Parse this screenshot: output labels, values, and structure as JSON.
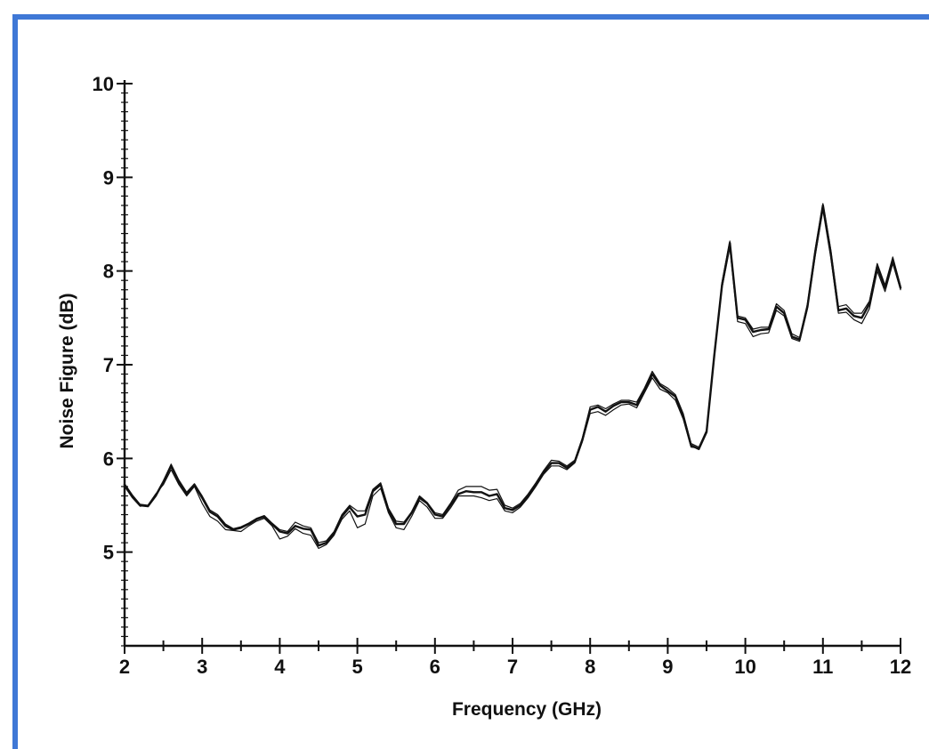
{
  "chart_data": {
    "type": "line",
    "xlabel": "Frequency (GHz)",
    "ylabel": "Noise Figure (dB)",
    "xlim": [
      2,
      12
    ],
    "ylim": [
      4,
      10
    ],
    "x_ticks": [
      2,
      3,
      4,
      5,
      6,
      7,
      8,
      9,
      10,
      11,
      12
    ],
    "y_ticks": [
      5,
      6,
      7,
      8,
      9,
      10
    ],
    "x_tick_labels": [
      "2",
      "3",
      "4",
      "5",
      "6",
      "7",
      "8",
      "9",
      "10",
      "11",
      "12"
    ],
    "y_tick_labels": [
      "5",
      "6",
      "7",
      "8",
      "9",
      "10"
    ],
    "grid": false,
    "colors": {
      "frame": "#3f78d6",
      "line": "#111111"
    },
    "series": [
      {
        "x": [
          2.0,
          2.1,
          2.2,
          2.3,
          2.4,
          2.5,
          2.6,
          2.7,
          2.8,
          2.9,
          3.0,
          3.1,
          3.2,
          3.3,
          3.4,
          3.5,
          3.6,
          3.7,
          3.8,
          3.9,
          4.0,
          4.1,
          4.2,
          4.3,
          4.4,
          4.5,
          4.6,
          4.7,
          4.8,
          4.9,
          5.0,
          5.1,
          5.2,
          5.3,
          5.4,
          5.5,
          5.6,
          5.7,
          5.8,
          5.9,
          6.0,
          6.1,
          6.2,
          6.3,
          6.4,
          6.5,
          6.6,
          6.7,
          6.8,
          6.9,
          7.0,
          7.1,
          7.2,
          7.3,
          7.4,
          7.5,
          7.6,
          7.7,
          7.8,
          7.9,
          8.0,
          8.1,
          8.2,
          8.3,
          8.4,
          8.5,
          8.6,
          8.7,
          8.8,
          8.9,
          9.0,
          9.1,
          9.2,
          9.3,
          9.4,
          9.5,
          9.6,
          9.7,
          9.8,
          9.9,
          10.0,
          10.1,
          10.2,
          10.3,
          10.4,
          10.5,
          10.6,
          10.7,
          10.8,
          10.9,
          11.0,
          11.1,
          11.2,
          11.3,
          11.4,
          11.5,
          11.6,
          11.7,
          11.8,
          11.9,
          12.0
        ],
        "values": [
          5.72,
          5.6,
          5.5,
          5.49,
          5.6,
          5.75,
          5.92,
          5.75,
          5.62,
          5.72,
          5.58,
          5.43,
          5.38,
          5.28,
          5.24,
          5.26,
          5.3,
          5.35,
          5.38,
          5.3,
          5.22,
          5.2,
          5.28,
          5.25,
          5.24,
          5.07,
          5.1,
          5.2,
          5.38,
          5.48,
          5.38,
          5.4,
          5.65,
          5.72,
          5.45,
          5.3,
          5.3,
          5.42,
          5.58,
          5.52,
          5.4,
          5.38,
          5.5,
          5.62,
          5.65,
          5.64,
          5.64,
          5.6,
          5.62,
          5.47,
          5.45,
          5.5,
          5.6,
          5.72,
          5.85,
          5.95,
          5.95,
          5.9,
          5.96,
          6.2,
          6.52,
          6.55,
          6.5,
          6.56,
          6.6,
          6.6,
          6.57,
          6.72,
          6.9,
          6.78,
          6.72,
          6.66,
          6.45,
          6.14,
          6.1,
          6.28,
          7.1,
          7.85,
          8.3,
          7.5,
          7.48,
          7.35,
          7.37,
          7.38,
          7.62,
          7.55,
          7.3,
          7.27,
          7.62,
          8.2,
          8.7,
          8.2,
          7.58,
          7.6,
          7.52,
          7.5,
          7.65,
          8.05,
          7.82,
          8.12,
          7.82
        ],
        "stroke_width": 2.4
      },
      {
        "x": [
          2.0,
          2.1,
          2.2,
          2.3,
          2.4,
          2.5,
          2.6,
          2.7,
          2.8,
          2.9,
          3.0,
          3.1,
          3.2,
          3.3,
          3.4,
          3.5,
          3.6,
          3.7,
          3.8,
          3.9,
          4.0,
          4.1,
          4.2,
          4.3,
          4.4,
          4.5,
          4.6,
          4.7,
          4.8,
          4.9,
          5.0,
          5.1,
          5.2,
          5.3,
          5.4,
          5.5,
          5.6,
          5.7,
          5.8,
          5.9,
          6.0,
          6.1,
          6.2,
          6.3,
          6.4,
          6.5,
          6.6,
          6.7,
          6.8,
          6.9,
          7.0,
          7.1,
          7.2,
          7.3,
          7.4,
          7.5,
          7.6,
          7.7,
          7.8,
          7.9,
          8.0,
          8.1,
          8.2,
          8.3,
          8.4,
          8.5,
          8.6,
          8.7,
          8.8,
          8.9,
          9.0,
          9.1,
          9.2,
          9.3,
          9.4,
          9.5,
          9.6,
          9.7,
          9.8,
          9.9,
          10.0,
          10.1,
          10.2,
          10.3,
          10.4,
          10.5,
          10.6,
          10.7,
          10.8,
          10.9,
          11.0,
          11.1,
          11.2,
          11.3,
          11.4,
          11.5,
          11.6,
          11.7,
          11.8,
          11.9,
          12.0
        ],
        "values": [
          5.7,
          5.58,
          5.49,
          5.5,
          5.62,
          5.72,
          5.88,
          5.72,
          5.6,
          5.7,
          5.52,
          5.38,
          5.33,
          5.24,
          5.23,
          5.22,
          5.28,
          5.33,
          5.36,
          5.28,
          5.14,
          5.17,
          5.25,
          5.2,
          5.18,
          5.04,
          5.08,
          5.18,
          5.35,
          5.44,
          5.26,
          5.3,
          5.6,
          5.68,
          5.42,
          5.26,
          5.24,
          5.38,
          5.55,
          5.48,
          5.36,
          5.36,
          5.47,
          5.6,
          5.6,
          5.6,
          5.58,
          5.55,
          5.57,
          5.44,
          5.42,
          5.48,
          5.58,
          5.7,
          5.83,
          5.92,
          5.92,
          5.88,
          5.95,
          6.18,
          6.48,
          6.5,
          6.46,
          6.52,
          6.57,
          6.58,
          6.54,
          6.7,
          6.86,
          6.74,
          6.7,
          6.62,
          6.42,
          6.12,
          6.11,
          6.3,
          7.12,
          7.82,
          8.25,
          7.46,
          7.44,
          7.3,
          7.33,
          7.34,
          7.58,
          7.52,
          7.28,
          7.25,
          7.6,
          8.16,
          8.65,
          8.15,
          7.55,
          7.56,
          7.48,
          7.44,
          7.6,
          8.0,
          7.78,
          8.08,
          7.8
        ],
        "stroke_width": 1.2
      },
      {
        "x": [
          2.0,
          2.1,
          2.2,
          2.3,
          2.4,
          2.5,
          2.6,
          2.7,
          2.8,
          2.9,
          3.0,
          3.1,
          3.2,
          3.3,
          3.4,
          3.5,
          3.6,
          3.7,
          3.8,
          3.9,
          4.0,
          4.1,
          4.2,
          4.3,
          4.4,
          4.5,
          4.6,
          4.7,
          4.8,
          4.9,
          5.0,
          5.1,
          5.2,
          5.3,
          5.4,
          5.5,
          5.6,
          5.7,
          5.8,
          5.9,
          6.0,
          6.1,
          6.2,
          6.3,
          6.4,
          6.5,
          6.6,
          6.7,
          6.8,
          6.9,
          7.0,
          7.1,
          7.2,
          7.3,
          7.4,
          7.5,
          7.6,
          7.7,
          7.8,
          7.9,
          8.0,
          8.1,
          8.2,
          8.3,
          8.4,
          8.5,
          8.6,
          8.7,
          8.8,
          8.9,
          9.0,
          9.1,
          9.2,
          9.3,
          9.4,
          9.5,
          9.6,
          9.7,
          9.8,
          9.9,
          10.0,
          10.1,
          10.2,
          10.3,
          10.4,
          10.5,
          10.6,
          10.7,
          10.8,
          10.9,
          11.0,
          11.1,
          11.2,
          11.3,
          11.4,
          11.5,
          11.6,
          11.7,
          11.8,
          11.9,
          12.0
        ],
        "values": [
          5.73,
          5.61,
          5.51,
          5.5,
          5.61,
          5.76,
          5.94,
          5.77,
          5.64,
          5.73,
          5.6,
          5.45,
          5.4,
          5.3,
          5.25,
          5.27,
          5.31,
          5.36,
          5.39,
          5.31,
          5.24,
          5.22,
          5.32,
          5.28,
          5.26,
          5.1,
          5.12,
          5.22,
          5.4,
          5.5,
          5.44,
          5.44,
          5.67,
          5.74,
          5.47,
          5.33,
          5.32,
          5.43,
          5.6,
          5.53,
          5.42,
          5.4,
          5.52,
          5.66,
          5.7,
          5.7,
          5.7,
          5.66,
          5.67,
          5.5,
          5.47,
          5.52,
          5.62,
          5.74,
          5.87,
          5.98,
          5.97,
          5.92,
          5.98,
          6.22,
          6.55,
          6.57,
          6.53,
          6.58,
          6.62,
          6.62,
          6.6,
          6.75,
          6.93,
          6.8,
          6.75,
          6.68,
          6.48,
          6.16,
          6.12,
          6.3,
          7.08,
          7.88,
          8.32,
          7.52,
          7.5,
          7.38,
          7.4,
          7.4,
          7.65,
          7.58,
          7.33,
          7.29,
          7.65,
          8.23,
          8.72,
          8.23,
          7.62,
          7.64,
          7.55,
          7.55,
          7.68,
          8.08,
          7.85,
          8.15,
          7.84
        ],
        "stroke_width": 1.2
      }
    ]
  }
}
